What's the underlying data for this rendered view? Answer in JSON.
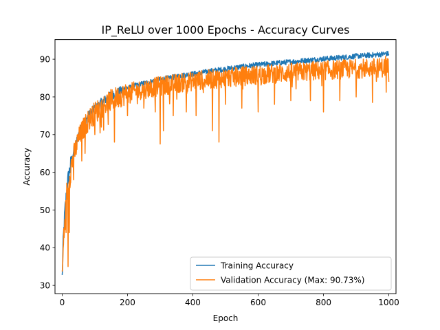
{
  "chart_data": {
    "type": "line",
    "title": "IP_ReLU over 1000 Epochs - Accuracy Curves",
    "xlabel": "Epoch",
    "ylabel": "Accuracy",
    "xlim": [
      -22,
      1022
    ],
    "ylim": [
      27.8,
      95.2
    ],
    "xticks": [
      0,
      200,
      400,
      600,
      800,
      1000
    ],
    "yticks": [
      30,
      40,
      50,
      60,
      70,
      80,
      90
    ],
    "legend_position": "lower-right",
    "series": [
      {
        "name": "Training Accuracy",
        "color": "#1f77b4",
        "description": "smooth rising curve with low noise",
        "x": [
          0,
          2,
          4,
          6,
          8,
          10,
          12,
          14,
          16,
          18,
          20,
          25,
          30,
          35,
          40,
          45,
          50,
          60,
          70,
          80,
          90,
          100,
          120,
          140,
          160,
          180,
          200,
          225,
          250,
          275,
          300,
          325,
          350,
          375,
          400,
          425,
          450,
          475,
          500,
          550,
          600,
          650,
          700,
          750,
          800,
          850,
          900,
          950,
          975,
          1000
        ],
        "values": [
          32,
          38,
          43,
          46,
          49,
          51,
          53,
          55,
          56.5,
          58,
          59,
          61.5,
          63.5,
          65.5,
          67,
          68.5,
          70,
          72,
          73.5,
          75,
          76,
          77,
          78.5,
          79.8,
          80.8,
          81.6,
          82.3,
          83,
          83.6,
          84.1,
          84.6,
          85,
          85.4,
          85.8,
          86.1,
          86.4,
          86.8,
          87.1,
          87.4,
          88,
          88.5,
          88.9,
          89.3,
          89.7,
          90.1,
          90.4,
          90.8,
          91.1,
          91.3,
          91.5
        ]
      },
      {
        "name": "Validation Accuracy (Max: 90.73%)",
        "color": "#ff7f0e",
        "description": "noisy curve following training accuracy with frequent downward spikes",
        "x": [
          0,
          2,
          4,
          6,
          8,
          10,
          12,
          14,
          16,
          18,
          20,
          25,
          30,
          35,
          40,
          45,
          50,
          60,
          70,
          80,
          90,
          100,
          120,
          140,
          160,
          180,
          200,
          225,
          250,
          275,
          300,
          325,
          350,
          375,
          400,
          425,
          450,
          475,
          500,
          550,
          600,
          650,
          700,
          750,
          800,
          850,
          900,
          950,
          975,
          1000
        ],
        "values": [
          31,
          36,
          41,
          44,
          47,
          50,
          52,
          53.5,
          55,
          56.5,
          57.5,
          60,
          62,
          64,
          65.5,
          67,
          68.5,
          70.5,
          72,
          73.5,
          74.5,
          75.5,
          77,
          78.3,
          79.2,
          80,
          80.7,
          81.3,
          81.8,
          82.2,
          82.6,
          83,
          83.3,
          83.6,
          83.9,
          84.2,
          84.4,
          84.6,
          84.8,
          85.2,
          85.6,
          85.9,
          86.2,
          86.5,
          86.8,
          87,
          87.2,
          87.4,
          87.5,
          87.6
        ],
        "dips": [
          [
            12,
            44
          ],
          [
            18,
            35
          ],
          [
            22,
            44
          ],
          [
            35,
            58
          ],
          [
            60,
            63
          ],
          [
            70,
            65
          ],
          [
            100,
            70
          ],
          [
            120,
            72
          ],
          [
            140,
            76
          ],
          [
            160,
            68
          ],
          [
            200,
            75
          ],
          [
            250,
            77
          ],
          [
            285,
            76
          ],
          [
            300,
            67.5
          ],
          [
            310,
            71
          ],
          [
            340,
            75
          ],
          [
            380,
            76
          ],
          [
            410,
            75
          ],
          [
            460,
            71
          ],
          [
            480,
            68
          ],
          [
            500,
            78
          ],
          [
            550,
            77
          ],
          [
            600,
            76
          ],
          [
            650,
            78
          ],
          [
            700,
            79
          ],
          [
            760,
            79
          ],
          [
            800,
            76
          ],
          [
            850,
            79
          ],
          [
            900,
            80
          ],
          [
            950,
            78.5
          ],
          [
            1000,
            84
          ]
        ],
        "max": 90.73
      }
    ]
  }
}
